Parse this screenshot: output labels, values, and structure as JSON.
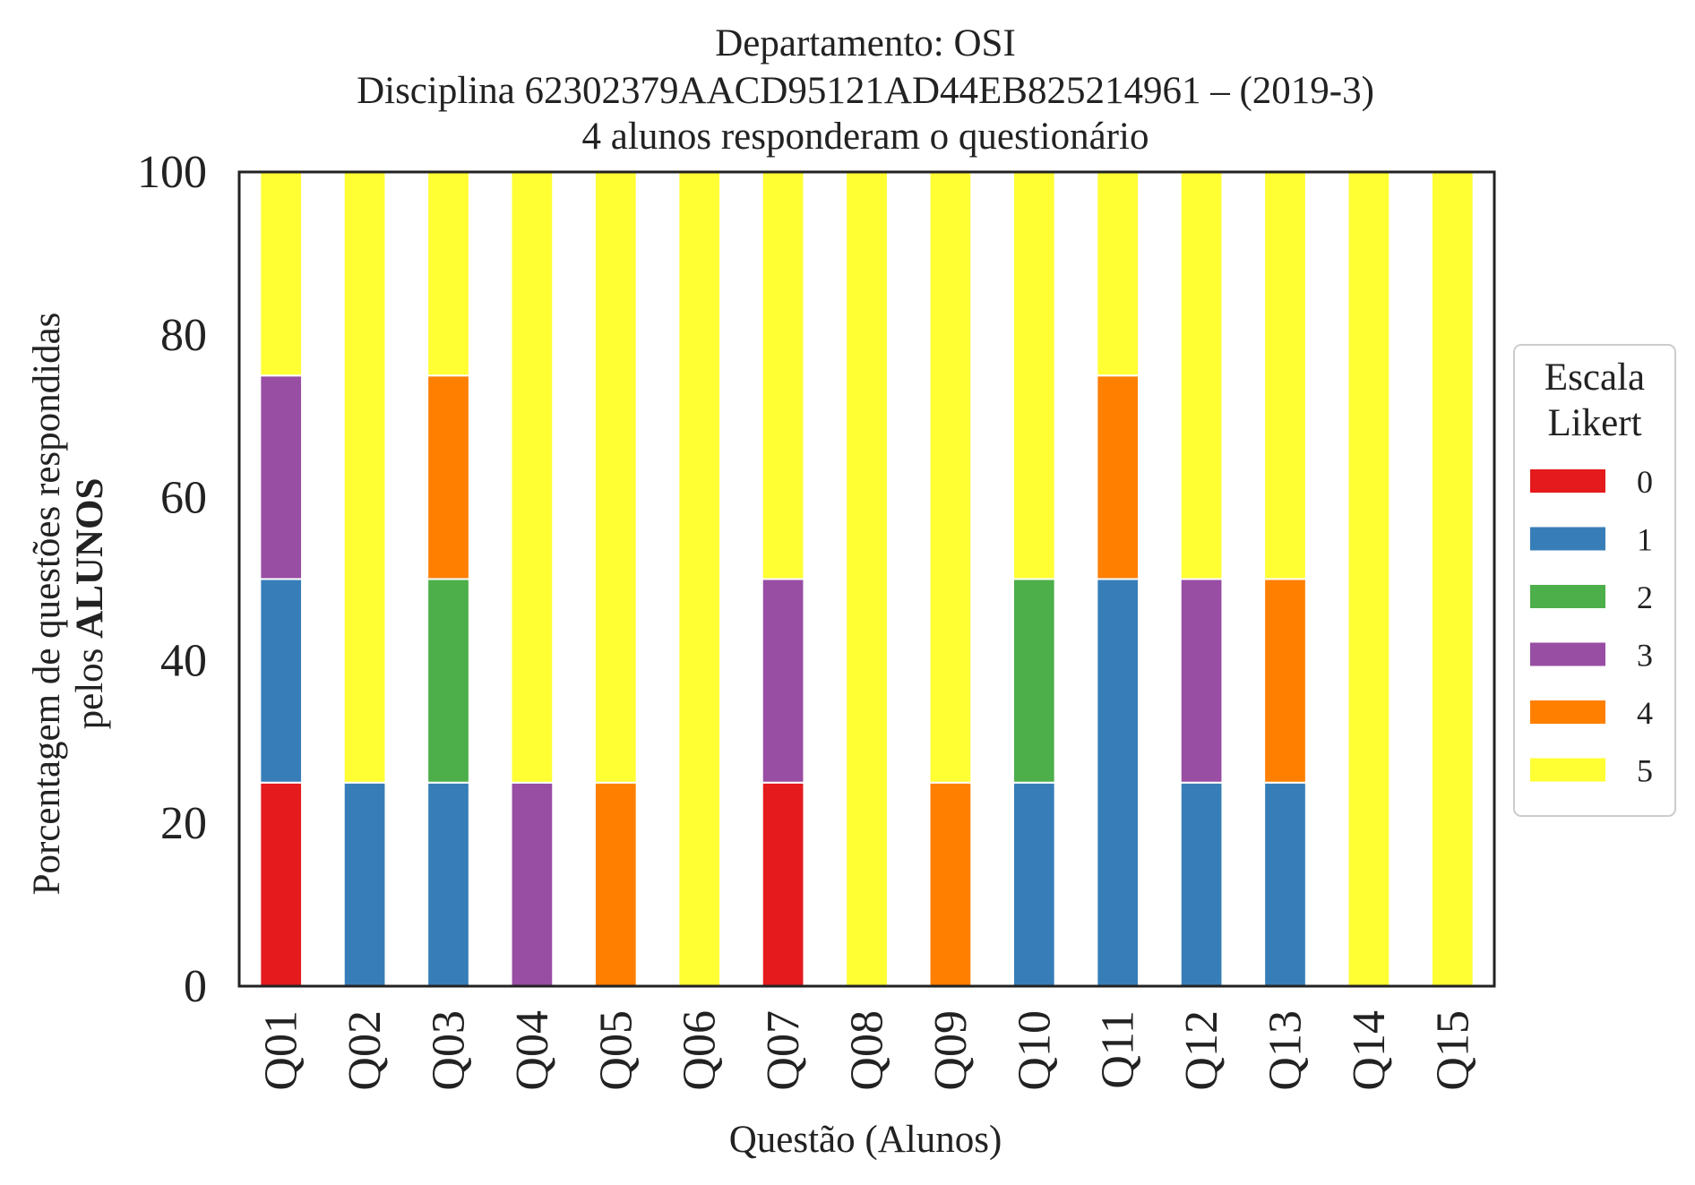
{
  "chart_data": {
    "type": "bar",
    "stacked": true,
    "title_lines": [
      "Departamento: OSI",
      "Disciplina 62302379AACD95121AD44EB825214961 – (2019-3)",
      "4 alunos responderam o questionário"
    ],
    "xlabel": "Questão (Alunos)",
    "ylabel_line1": "Porcentagem de questões respondidas",
    "ylabel_line2_prefix": "pelos ",
    "ylabel_line2_bold": "ALUNOS",
    "ylim": [
      0,
      100
    ],
    "yticks": [
      "0",
      "20",
      "40",
      "60",
      "80",
      "100"
    ],
    "grid": false,
    "legend_title_lines": [
      "Escala",
      "Likert"
    ],
    "legend_position": "center-right outside",
    "categories": [
      "Q01",
      "Q02",
      "Q03",
      "Q04",
      "Q05",
      "Q06",
      "Q07",
      "Q08",
      "Q09",
      "Q10",
      "Q11",
      "Q12",
      "Q13",
      "Q14",
      "Q15"
    ],
    "series": [
      {
        "name": "0",
        "color": "#e41a1c",
        "values": [
          25,
          0,
          0,
          0,
          0,
          0,
          25,
          0,
          0,
          0,
          0,
          0,
          0,
          0,
          0
        ]
      },
      {
        "name": "1",
        "color": "#377eb8",
        "values": [
          25,
          25,
          25,
          0,
          0,
          0,
          0,
          0,
          0,
          25,
          50,
          25,
          25,
          0,
          0
        ]
      },
      {
        "name": "2",
        "color": "#4daf4a",
        "values": [
          0,
          0,
          25,
          0,
          0,
          0,
          0,
          0,
          0,
          25,
          0,
          0,
          0,
          0,
          0
        ]
      },
      {
        "name": "3",
        "color": "#984ea3",
        "values": [
          25,
          0,
          0,
          25,
          0,
          0,
          25,
          0,
          0,
          0,
          0,
          25,
          0,
          0,
          0
        ]
      },
      {
        "name": "4",
        "color": "#ff7f00",
        "values": [
          0,
          0,
          25,
          0,
          25,
          0,
          0,
          0,
          25,
          0,
          25,
          0,
          25,
          0,
          0
        ]
      },
      {
        "name": "5",
        "color": "#ffff33",
        "values": [
          25,
          75,
          25,
          75,
          75,
          100,
          50,
          100,
          75,
          50,
          25,
          50,
          50,
          100,
          100
        ]
      }
    ]
  }
}
